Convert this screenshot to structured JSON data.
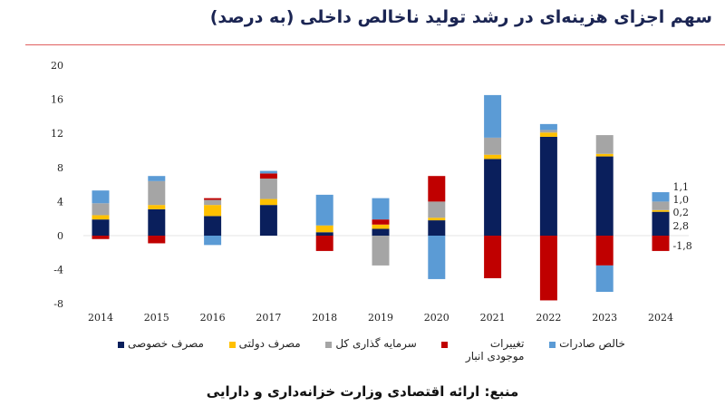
{
  "title": "سهم اجزای هزینه‌ای در رشد تولید ناخالص داخلی (به درصد)",
  "source": "منبع: ارائه اقتصادی وزارت خزانه‌داری و دارایی",
  "chart_data": {
    "type": "bar",
    "stacked": true,
    "title": "سهم اجزای هزینه‌ای در رشد تولید ناخالص داخلی (به درصد)",
    "xlabel": "",
    "ylabel": "",
    "ylim": [
      -8,
      20
    ],
    "yticks": [
      -8,
      -4,
      0,
      4,
      8,
      12,
      16,
      20
    ],
    "grid": false,
    "legend_position": "bottom",
    "categories": [
      "2014",
      "2015",
      "2016",
      "2017",
      "2018",
      "2019",
      "2020",
      "2021",
      "2022",
      "2023",
      "2024"
    ],
    "series": [
      {
        "name": "مصرف خصوصی",
        "color": "#0a1f5c",
        "values": [
          1.9,
          3.1,
          2.3,
          3.6,
          0.4,
          0.8,
          1.8,
          9.0,
          11.6,
          9.3,
          2.8
        ]
      },
      {
        "name": "مصرف دولتی",
        "color": "#ffc000",
        "values": [
          0.5,
          0.5,
          1.3,
          0.7,
          0.8,
          0.5,
          0.3,
          0.5,
          0.5,
          0.3,
          0.2
        ]
      },
      {
        "name": "سرمایه گذاری کل",
        "color": "#a5a5a5",
        "values": [
          1.4,
          2.8,
          0.6,
          2.4,
          0.0,
          -3.5,
          1.9,
          2.0,
          0.3,
          2.2,
          1.0
        ]
      },
      {
        "name": "تغییرات موجودی انبار",
        "color": "#c00000",
        "values": [
          -0.4,
          -0.9,
          0.2,
          0.6,
          -1.8,
          0.6,
          3.0,
          -5.0,
          -7.6,
          -3.5,
          -1.8
        ]
      },
      {
        "name": "خالص صادرات",
        "color": "#5b9bd5",
        "values": [
          1.5,
          0.6,
          -1.1,
          0.3,
          3.6,
          2.5,
          -5.1,
          5.0,
          0.7,
          -3.1,
          1.1
        ]
      }
    ],
    "data_labels": {
      "category": "2024",
      "labels": [
        "1,1",
        "1,0",
        "0,2",
        "2,8",
        "-1,8"
      ]
    }
  },
  "legend": [
    {
      "label": "مصرف خصوصی",
      "color": "#0a1f5c"
    },
    {
      "label": "مصرف دولتی",
      "color": "#ffc000"
    },
    {
      "label": "سرمایه گذاری کل",
      "color": "#a5a5a5"
    },
    {
      "label": "تغییرات موجودی انبار",
      "color": "#c00000"
    },
    {
      "label": "خالص صادرات",
      "color": "#5b9bd5"
    }
  ]
}
